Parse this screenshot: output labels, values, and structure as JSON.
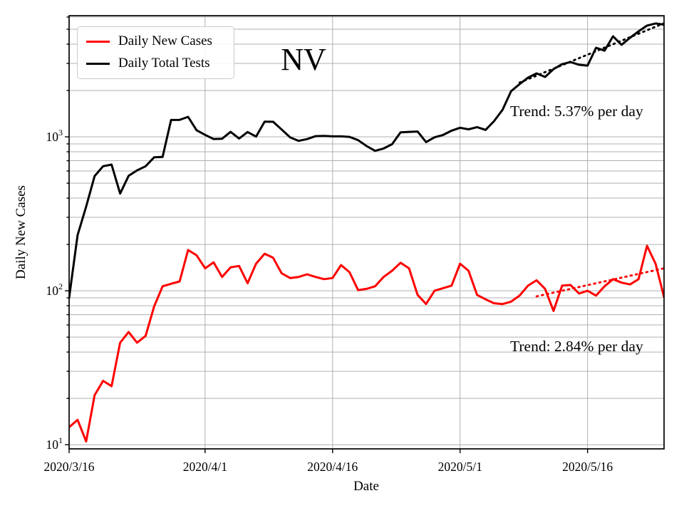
{
  "chart_data": {
    "type": "line",
    "title": "NV",
    "xlabel": "Date",
    "ylabel": "Daily New Cases",
    "x_unit": "daily points starting 2020/3/16",
    "x_range_days": [
      0,
      70
    ],
    "x_ticks": [
      {
        "day": 0,
        "label": "2020/3/16"
      },
      {
        "day": 16,
        "label": "2020/4/1"
      },
      {
        "day": 31,
        "label": "2020/4/16"
      },
      {
        "day": 46,
        "label": "2020/5/1"
      },
      {
        "day": 61,
        "label": "2020/5/16"
      }
    ],
    "y_scale": "log",
    "y_range": [
      9.4,
      6124
    ],
    "y_major_ticks": [
      {
        "value": 10,
        "base": "10",
        "exp": "1"
      },
      {
        "value": 100,
        "base": "10",
        "exp": "2"
      },
      {
        "value": 1000,
        "base": "10",
        "exp": "3"
      }
    ],
    "grid": true,
    "grid_color": "#b0b0b0",
    "legend": {
      "position": "upper left",
      "items": [
        {
          "label": "Daily New Cases",
          "color": "#ff0000"
        },
        {
          "label": "Daily Total Tests",
          "color": "#000000"
        }
      ]
    },
    "series": [
      {
        "name": "Daily New Cases",
        "color": "#ff0000",
        "style": "solid",
        "values": [
          13,
          14.5,
          10.5,
          21,
          26,
          24,
          46,
          54,
          46,
          51,
          79,
          107,
          111,
          115,
          184,
          170,
          140,
          153,
          123,
          142,
          145,
          112,
          150,
          174,
          164,
          130,
          121,
          123,
          128,
          123,
          119,
          121,
          147,
          132,
          101,
          103,
          107,
          123,
          135,
          152,
          140,
          94,
          82,
          100,
          104,
          108,
          150,
          135,
          94,
          88,
          83,
          82,
          85,
          93,
          108,
          117,
          103,
          74,
          108,
          109,
          96,
          100,
          93,
          107,
          119,
          113,
          110,
          119,
          196,
          150,
          91
        ]
      },
      {
        "name": "Daily Total Tests",
        "color": "#000000",
        "style": "solid",
        "values": [
          90,
          230,
          352,
          556,
          644,
          660,
          428,
          558,
          606,
          644,
          736,
          740,
          1287,
          1290,
          1348,
          1104,
          1030,
          968,
          972,
          1077,
          975,
          1075,
          1004,
          1256,
          1253,
          1117,
          993,
          942,
          967,
          1010,
          1013,
          1007,
          1007,
          1000,
          952,
          871,
          811,
          840,
          896,
          1070,
          1077,
          1083,
          925,
          993,
          1029,
          1097,
          1145,
          1119,
          1157,
          1110,
          1265,
          1500,
          1978,
          2200,
          2422,
          2582,
          2450,
          2754,
          2965,
          3060,
          2940,
          2900,
          3793,
          3630,
          4500,
          3960,
          4400,
          4845,
          5280,
          5450,
          5350
        ]
      }
    ],
    "trend_lines": [
      {
        "name": "cases-trend",
        "color": "#ff0000",
        "style": "dotted",
        "start": {
          "day": 55,
          "value": 92
        },
        "end": {
          "day": 70,
          "value": 140
        },
        "label": "Trend: 2.84% per day"
      },
      {
        "name": "tests-trend",
        "color": "#000000",
        "style": "dotted",
        "start": {
          "day": 53,
          "value": 2250
        },
        "end": {
          "day": 70,
          "value": 5470
        },
        "label": "Trend: 5.37% per day"
      }
    ]
  }
}
